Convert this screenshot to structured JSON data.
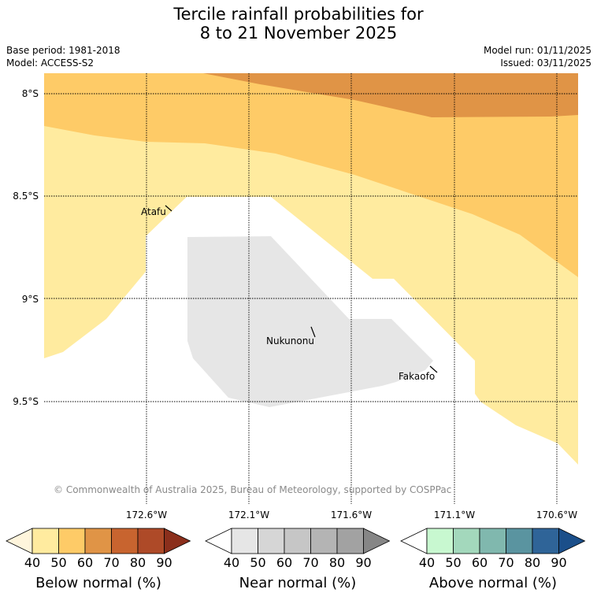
{
  "title": {
    "line1": "Tercile rainfall probabilities for",
    "line2": "8 to 21 November 2025"
  },
  "meta": {
    "base_period": "Base period: 1981-2018",
    "model": "Model: ACCESS-S2",
    "model_run": "Model run: 01/11/2025",
    "issued": "Issued: 03/11/2025"
  },
  "map": {
    "lat_labels": [
      "8°S",
      "8.5°S",
      "9°S",
      "9.5°S"
    ],
    "lon_labels": [
      "172.6°W",
      "172.1°W",
      "171.6°W",
      "171.1°W",
      "170.6°W"
    ],
    "places": [
      "Atafu",
      "Nukunonu",
      "Fakaofo"
    ],
    "copyright": "© Commonwealth of Australia 2025, Bureau of Meteorology, supported by COSPPac"
  },
  "colorbars": [
    {
      "label": "Below normal (%)",
      "ticks": [
        "40",
        "50",
        "60",
        "70",
        "80",
        "90"
      ],
      "colors": [
        "#fff5dc",
        "#ffeb9f",
        "#fecb67",
        "#e09446",
        "#c8642f",
        "#ae4a28",
        "#8b2f1c"
      ]
    },
    {
      "label": "Near normal (%)",
      "ticks": [
        "40",
        "50",
        "60",
        "70",
        "80",
        "90"
      ],
      "colors": [
        "#ffffff",
        "#e6e6e6",
        "#d6d6d6",
        "#c6c6c6",
        "#b4b4b4",
        "#a2a2a2",
        "#868686"
      ]
    },
    {
      "label": "Above normal (%)",
      "ticks": [
        "40",
        "50",
        "60",
        "70",
        "80",
        "90"
      ],
      "colors": [
        "#ffffff",
        "#c8f8d0",
        "#a3d8bc",
        "#80b8ae",
        "#5a94a0",
        "#2f6498",
        "#1b4f8a"
      ]
    }
  ],
  "colors": {
    "below_50": "#ffeb9f",
    "below_60": "#fecb67",
    "below_70": "#e09446",
    "near_40": "#e6e6e6"
  }
}
